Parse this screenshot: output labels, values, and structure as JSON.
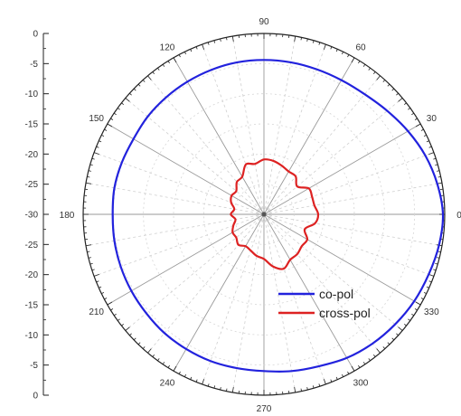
{
  "chart_data": {
    "type": "polar-line",
    "angular_unit": "degrees",
    "radial_range": [
      -30,
      0
    ],
    "radial_ticks": [
      0,
      -5,
      -10,
      -15,
      -20,
      -25,
      -30
    ],
    "radial_scale_labels": [
      "0",
      "-5",
      "-10",
      "-15",
      "-20",
      "-25",
      "-30",
      "-25",
      "-20",
      "-15",
      "-10",
      "-5",
      "0"
    ],
    "angle_ticks": [
      0,
      30,
      60,
      90,
      120,
      150,
      180,
      210,
      240,
      270,
      300,
      330
    ],
    "angle_labels": [
      "0",
      "30",
      "60",
      "90",
      "120",
      "150",
      "180",
      "210",
      "240",
      "270",
      "300",
      "330"
    ],
    "grid": true,
    "legend": {
      "position": "bottom-right"
    },
    "series": [
      {
        "name": "co-pol",
        "color": "#2222dd",
        "angles": [
          0,
          10,
          20,
          30,
          40,
          50,
          60,
          70,
          80,
          90,
          100,
          110,
          120,
          130,
          140,
          150,
          160,
          170,
          180,
          190,
          200,
          210,
          220,
          230,
          240,
          250,
          260,
          270,
          280,
          290,
          300,
          310,
          320,
          330,
          340,
          350
        ],
        "values": [
          -0.3,
          -0.8,
          -1.5,
          -2.4,
          -3.3,
          -4.0,
          -4.3,
          -4.4,
          -4.4,
          -4.4,
          -4.4,
          -4.5,
          -4.6,
          -4.7,
          -4.8,
          -5.0,
          -4.9,
          -4.8,
          -4.9,
          -4.8,
          -4.7,
          -4.6,
          -4.5,
          -4.3,
          -4.2,
          -4.1,
          -4.1,
          -4.0,
          -3.6,
          -3.2,
          -2.5,
          -2.0,
          -1.6,
          -1.2,
          -0.9,
          -0.5
        ]
      },
      {
        "name": "cross-pol",
        "color": "#dd2222",
        "angles": [
          0,
          10,
          20,
          30,
          40,
          50,
          60,
          70,
          80,
          90,
          100,
          110,
          120,
          130,
          140,
          150,
          160,
          170,
          180,
          190,
          200,
          210,
          220,
          230,
          240,
          250,
          260,
          270,
          280,
          290,
          300,
          310,
          320,
          330,
          340,
          350
        ],
        "values": [
          -21.0,
          -21.5,
          -21.5,
          -21.4,
          -22.8,
          -21.8,
          -21.8,
          -21.4,
          -21.0,
          -20.9,
          -21.5,
          -21.2,
          -22.8,
          -23.0,
          -24.0,
          -23.8,
          -24.2,
          -25.0,
          -24.5,
          -25.2,
          -24.6,
          -24.0,
          -24.0,
          -23.4,
          -23.9,
          -23.6,
          -23.0,
          -22.6,
          -21.2,
          -20.4,
          -21.3,
          -21.4,
          -21.8,
          -21.7,
          -22.8,
          -21.4
        ]
      }
    ]
  }
}
